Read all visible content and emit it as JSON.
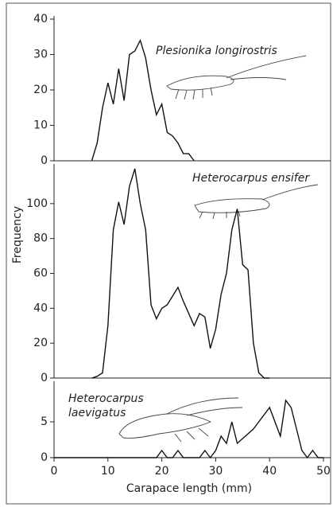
{
  "chart_data": [
    {
      "type": "line",
      "annotation": "Plesionika longirostris",
      "color": "#111111",
      "x": [
        7,
        8,
        9,
        10,
        11,
        12,
        13,
        14,
        15,
        16,
        17,
        18,
        19,
        20,
        21,
        22,
        23,
        24,
        25,
        26
      ],
      "values": [
        0,
        5,
        15,
        22,
        16,
        26,
        17,
        30,
        31,
        34,
        29,
        20,
        13,
        16,
        8,
        7,
        5,
        2,
        2,
        0
      ],
      "xlim": [
        0,
        50
      ],
      "ylim": [
        0,
        40
      ],
      "yticks": [
        0,
        10,
        20,
        30,
        40
      ]
    },
    {
      "type": "line",
      "annotation": "Heterocarpus ensifer",
      "ylabel": "Frequency",
      "color": "#111111",
      "x": [
        7,
        8,
        9,
        10,
        11,
        12,
        13,
        14,
        15,
        16,
        17,
        18,
        19,
        20,
        21,
        22,
        23,
        24,
        25,
        26,
        27,
        28,
        29,
        30,
        31,
        32,
        33,
        34,
        35,
        36,
        37,
        38,
        39,
        40
      ],
      "values": [
        0,
        1,
        3,
        30,
        85,
        101,
        88,
        110,
        120,
        100,
        85,
        42,
        34,
        40,
        42,
        47,
        52,
        44,
        37,
        30,
        37,
        35,
        17,
        28,
        48,
        60,
        85,
        97,
        65,
        62,
        20,
        3,
        0,
        0
      ],
      "xlim": [
        0,
        50
      ],
      "ylim": [
        0,
        120
      ],
      "yticks": [
        0,
        20,
        40,
        60,
        80,
        100
      ]
    },
    {
      "type": "line",
      "annotation": "Heterocarpus laevigatus",
      "xlabel": "Carapace length (mm)",
      "color": "#111111",
      "x": [
        0,
        19,
        20,
        21,
        22,
        23,
        24,
        27,
        28,
        29,
        30,
        31,
        32,
        33,
        34,
        37,
        38,
        40,
        41,
        42,
        43,
        44,
        46,
        47,
        48,
        49,
        50
      ],
      "values": [
        0,
        0,
        1,
        0,
        0,
        1,
        0,
        0,
        1,
        0,
        1,
        3,
        2,
        5,
        2,
        4,
        5,
        7,
        5,
        3,
        8,
        7,
        1,
        0,
        1,
        0,
        0
      ],
      "xlim": [
        0,
        50
      ],
      "ylim": [
        0,
        10
      ],
      "yticks": [
        0,
        5
      ],
      "xticks": [
        0,
        10,
        20,
        30,
        40,
        50
      ]
    }
  ]
}
